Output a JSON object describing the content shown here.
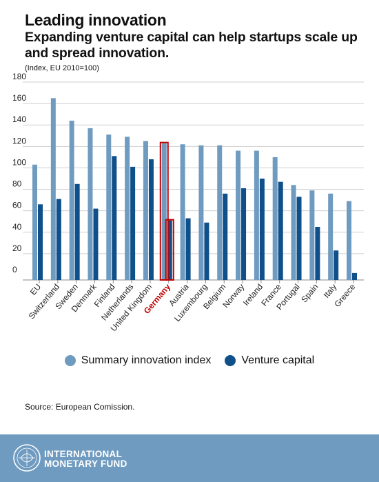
{
  "header": {
    "title": "Leading innovation",
    "subtitle": "Expanding venture capital can help startups scale up and spread innovation.",
    "unit_note": "(Index, EU 2010=100)"
  },
  "chart_data": {
    "type": "bar",
    "categories": [
      "EU",
      "Switzerland",
      "Sweden",
      "Denmark",
      "Finland",
      "Netherlands",
      "United Kingdom",
      "Germany",
      "Austria",
      "Luxembourg",
      "Belgium",
      "Norway",
      "Ireland",
      "France",
      "Portugal",
      "Spain",
      "Italy",
      "Greece"
    ],
    "highlighted_category": "Germany",
    "series": [
      {
        "name": "Summary innovation index",
        "color": "#6f9bc0",
        "values": [
          103,
          165,
          144,
          137,
          131,
          129,
          125,
          123,
          122,
          121,
          121,
          116,
          116,
          110,
          84,
          79,
          76,
          69
        ]
      },
      {
        "name": "Venture capital",
        "color": "#0f4f8a",
        "values": [
          66,
          71,
          85,
          62,
          111,
          101,
          108,
          51,
          53,
          49,
          76,
          81,
          90,
          87,
          73,
          45,
          23,
          2
        ]
      }
    ],
    "ylim": [
      0,
      180
    ],
    "yticks": [
      0,
      20,
      40,
      60,
      80,
      100,
      120,
      140,
      160,
      180
    ],
    "grid": true,
    "legend_position": "bottom",
    "highlight_color": "#c00000"
  },
  "source": "Source: European Comission.",
  "footer": {
    "org_line1": "INTERNATIONAL",
    "org_line2": "MONETARY FUND",
    "seal_icon": "imf-seal-icon"
  }
}
